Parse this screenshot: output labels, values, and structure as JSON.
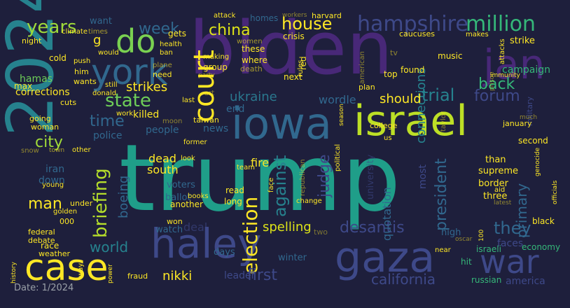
{
  "background": "#1e1f3c",
  "date_label": "Date: 1/2024",
  "words": [
    {
      "t": "trump",
      "c": "#1f9e89"
    },
    {
      "t": "biden",
      "c": "#482878"
    },
    {
      "t": "2024",
      "c": "#26828e"
    },
    {
      "t": "iowa",
      "c": "#31688e"
    },
    {
      "t": "israel",
      "c": "#bddf26"
    },
    {
      "t": "haley",
      "c": "#3e4989"
    },
    {
      "t": "gaza",
      "c": "#3e4989"
    },
    {
      "t": "case",
      "c": "#fde725"
    },
    {
      "t": "court",
      "c": "#fde725"
    },
    {
      "t": "york",
      "c": "#31688e"
    },
    {
      "t": "do",
      "c": "#7ad151"
    },
    {
      "t": "jan",
      "c": "#482878"
    },
    {
      "t": "war",
      "c": "#3e4989"
    },
    {
      "t": "hampshire",
      "c": "#3e4989"
    },
    {
      "t": "million",
      "c": "#35b779"
    },
    {
      "t": "years",
      "c": "#9fda3a"
    },
    {
      "t": "china",
      "c": "#dde318"
    },
    {
      "t": "house",
      "c": "#fde725"
    },
    {
      "t": "state",
      "c": "#6ece58"
    },
    {
      "t": "back",
      "c": "#35b779"
    },
    {
      "t": "trial",
      "c": "#26828e"
    },
    {
      "t": "forum",
      "c": "#3e4989"
    },
    {
      "t": "ukraine",
      "c": "#2a788e"
    },
    {
      "t": "election",
      "c": "#fde725"
    },
    {
      "t": "desantis",
      "c": "#3e4989"
    },
    {
      "t": "california",
      "c": "#3e4989"
    },
    {
      "t": "briefing",
      "c": "#b5de2b"
    },
    {
      "t": "world",
      "c": "#26828e"
    },
    {
      "t": "they",
      "c": "#31688e"
    },
    {
      "t": "first",
      "c": "#3e4989"
    },
    {
      "t": "man",
      "c": "#fde725"
    },
    {
      "t": "city",
      "c": "#a0da39"
    },
    {
      "t": "time",
      "c": "#31688e"
    },
    {
      "t": "week",
      "c": "#31688e"
    },
    {
      "t": "strikes",
      "c": "#fde725"
    },
    {
      "t": "against",
      "c": "#26828e"
    },
    {
      "t": "judge",
      "c": "#3e4989"
    },
    {
      "t": "primary",
      "c": "#31688e"
    },
    {
      "t": "president",
      "c": "#31688e"
    },
    {
      "t": "connections",
      "c": "#26828e"
    },
    {
      "t": "should",
      "c": "#fde725"
    },
    {
      "t": "wordle",
      "c": "#31688e"
    },
    {
      "t": "boeing",
      "c": "#31688e"
    },
    {
      "t": "spelling",
      "c": "#dde318"
    },
    {
      "t": "nikki",
      "c": "#fde725"
    },
    {
      "t": "south",
      "c": "#fde725"
    },
    {
      "t": "dead",
      "c": "#fde725"
    },
    {
      "t": "killed",
      "c": "#fde725"
    },
    {
      "t": "corrections",
      "c": "#fde725"
    },
    {
      "t": "campaign",
      "c": "#35b779"
    },
    {
      "t": "fire",
      "c": "#fde725"
    },
    {
      "t": "faces",
      "c": "#3e4989"
    },
    {
      "t": "leader",
      "c": "#3e4989"
    },
    {
      "t": "america",
      "c": "#3e4989"
    },
    {
      "t": "police",
      "c": "#31688e"
    },
    {
      "t": "people",
      "c": "#31688e"
    },
    {
      "t": "most",
      "c": "#3e4989"
    },
    {
      "t": "quotation",
      "c": "#31688e"
    },
    {
      "t": "g",
      "c": "#fde725"
    },
    {
      "t": "want",
      "c": "#31688e"
    },
    {
      "t": "hamas",
      "c": "#6ece58"
    },
    {
      "t": "news",
      "c": "#31688e"
    },
    {
      "t": "end",
      "c": "#31688e"
    },
    {
      "t": "university",
      "c": "#3e4989"
    },
    {
      "t": "military",
      "c": "#3e4989"
    },
    {
      "t": "supreme",
      "c": "#fde725"
    },
    {
      "t": "border",
      "c": "#fde725"
    },
    {
      "t": "three",
      "c": "#fde725"
    },
    {
      "t": "than",
      "c": "#fde725"
    },
    {
      "t": "economy",
      "c": "#35b779"
    },
    {
      "t": "russian",
      "c": "#35b779"
    },
    {
      "t": "iran",
      "c": "#31688e"
    },
    {
      "t": "down",
      "c": "#31688e"
    },
    {
      "t": "voters",
      "c": "#31688e"
    },
    {
      "t": "ballot",
      "c": "#31688e"
    },
    {
      "t": "watch",
      "c": "#31688e"
    },
    {
      "t": "another",
      "c": "#fde725"
    },
    {
      "t": "won",
      "c": "#fde725"
    },
    {
      "t": "deal",
      "c": "#3e4989"
    },
    {
      "t": "days",
      "c": "#31688e"
    },
    {
      "t": "winter",
      "c": "#31688e"
    },
    {
      "t": "high",
      "c": "#31688e"
    },
    {
      "t": "hit",
      "c": "#35b779"
    },
    {
      "t": "israeli",
      "c": "#35b779"
    },
    {
      "t": "homes",
      "c": "#31688e"
    },
    {
      "t": "harvard",
      "c": "#fde725"
    },
    {
      "t": "crisis",
      "c": "#fde725"
    },
    {
      "t": "caucuses",
      "c": "#fde725"
    },
    {
      "t": "strike",
      "c": "#fde725"
    },
    {
      "t": "makes",
      "c": "#fde725"
    },
    {
      "t": "found",
      "c": "#fde725"
    },
    {
      "t": "top",
      "c": "#fde725"
    },
    {
      "t": "music",
      "c": "#fde725"
    },
    {
      "t": "group",
      "c": "#fde725"
    },
    {
      "t": "where",
      "c": "#fde725"
    },
    {
      "t": "these",
      "c": "#fde725"
    },
    {
      "t": "gets",
      "c": "#fde725"
    },
    {
      "t": "need",
      "c": "#fde725"
    },
    {
      "t": "still",
      "c": "#fde725"
    },
    {
      "t": "cold",
      "c": "#fde725"
    },
    {
      "t": "push",
      "c": "#fde725"
    },
    {
      "t": "max",
      "c": "#fde725"
    },
    {
      "t": "wants",
      "c": "#fde725"
    },
    {
      "t": "night",
      "c": "#fde725"
    },
    {
      "t": "next",
      "c": "#fde725"
    },
    {
      "t": "plan",
      "c": "#fde725"
    },
    {
      "t": "college",
      "c": "#fde725"
    },
    {
      "t": "second",
      "c": "#fde725"
    },
    {
      "t": "read",
      "c": "#fde725"
    },
    {
      "t": "long",
      "c": "#fde725"
    },
    {
      "t": "under",
      "c": "#fde725"
    },
    {
      "t": "aid",
      "c": "#fde725"
    },
    {
      "t": "federal",
      "c": "#fde725"
    },
    {
      "t": "debate",
      "c": "#fde725"
    },
    {
      "t": "race",
      "c": "#fde725"
    },
    {
      "t": "weather",
      "c": "#fde725"
    },
    {
      "t": "golden",
      "c": "#fde725"
    },
    {
      "t": "000",
      "c": "#fde725"
    },
    {
      "t": "fraud",
      "c": "#fde725"
    },
    {
      "t": "immunity",
      "c": "#fde725"
    },
    {
      "t": "genocide",
      "c": "#fde725"
    },
    {
      "t": "officials",
      "c": "#fde725"
    },
    {
      "t": "latest",
      "c": "#fde725"
    },
    {
      "t": "january",
      "c": "#fde725"
    },
    {
      "t": "going",
      "c": "#fde725"
    },
    {
      "t": "woman",
      "c": "#fde725"
    },
    {
      "t": "black",
      "c": "#fde725"
    },
    {
      "t": "near",
      "c": "#fde725"
    },
    {
      "t": "change",
      "c": "#fde725"
    },
    {
      "t": "books",
      "c": "#fde725"
    },
    {
      "t": "attacks",
      "c": "#fde725"
    },
    {
      "t": "rules",
      "c": "#fde725"
    },
    {
      "t": "political",
      "c": "#fde725"
    },
    {
      "t": "republican",
      "c": "#fde725"
    },
    {
      "t": "american",
      "c": "#fde725"
    },
    {
      "t": "face",
      "c": "#fde725"
    },
    {
      "t": "red",
      "c": "#fde725"
    },
    {
      "t": "taiwan",
      "c": "#fde725"
    },
    {
      "t": "former",
      "c": "#fde725"
    },
    {
      "t": "look",
      "c": "#fde725"
    },
    {
      "t": "team",
      "c": "#fde725"
    },
    {
      "t": "making",
      "c": "#fde725"
    },
    {
      "t": "party",
      "c": "#fde725"
    },
    {
      "t": "death",
      "c": "#fde725"
    },
    {
      "t": "women",
      "c": "#fde725"
    },
    {
      "t": "attack",
      "c": "#fde725"
    },
    {
      "t": "workers",
      "c": "#fde725"
    },
    {
      "t": "climate",
      "c": "#fde725"
    },
    {
      "t": "times",
      "c": "#fde725"
    },
    {
      "t": "health",
      "c": "#fde725"
    },
    {
      "t": "plane",
      "c": "#fde725"
    },
    {
      "t": "ban",
      "c": "#fde725"
    },
    {
      "t": "would",
      "c": "#fde725"
    },
    {
      "t": "him",
      "c": "#fde725"
    },
    {
      "t": "cuts",
      "c": "#fde725"
    },
    {
      "t": "work",
      "c": "#fde725"
    },
    {
      "t": "donald",
      "c": "#fde725"
    },
    {
      "t": "town",
      "c": "#fde725"
    },
    {
      "t": "other",
      "c": "#fde725"
    },
    {
      "t": "snow",
      "c": "#fde725"
    },
    {
      "t": "young",
      "c": "#fde725"
    },
    {
      "t": "us",
      "c": "#fde725"
    },
    {
      "t": "history",
      "c": "#fde725"
    },
    {
      "t": "way",
      "c": "#fde725"
    },
    {
      "t": "power",
      "c": "#fde725"
    },
    {
      "t": "season",
      "c": "#fde725"
    },
    {
      "t": "prison",
      "c": "#fde725"
    },
    {
      "t": "moon",
      "c": "#fde725"
    },
    {
      "t": "last",
      "c": "#fde725"
    },
    {
      "t": "tv",
      "c": "#fde725"
    },
    {
      "t": "oscar",
      "c": "#fde725"
    },
    {
      "t": "100",
      "c": "#fde725"
    },
    {
      "t": "two",
      "c": "#fde725"
    },
    {
      "t": "art",
      "c": "#fde725"
    },
    {
      "t": "taylor",
      "c": "#fde725"
    },
    {
      "t": "much",
      "c": "#fde725"
    }
  ]
}
